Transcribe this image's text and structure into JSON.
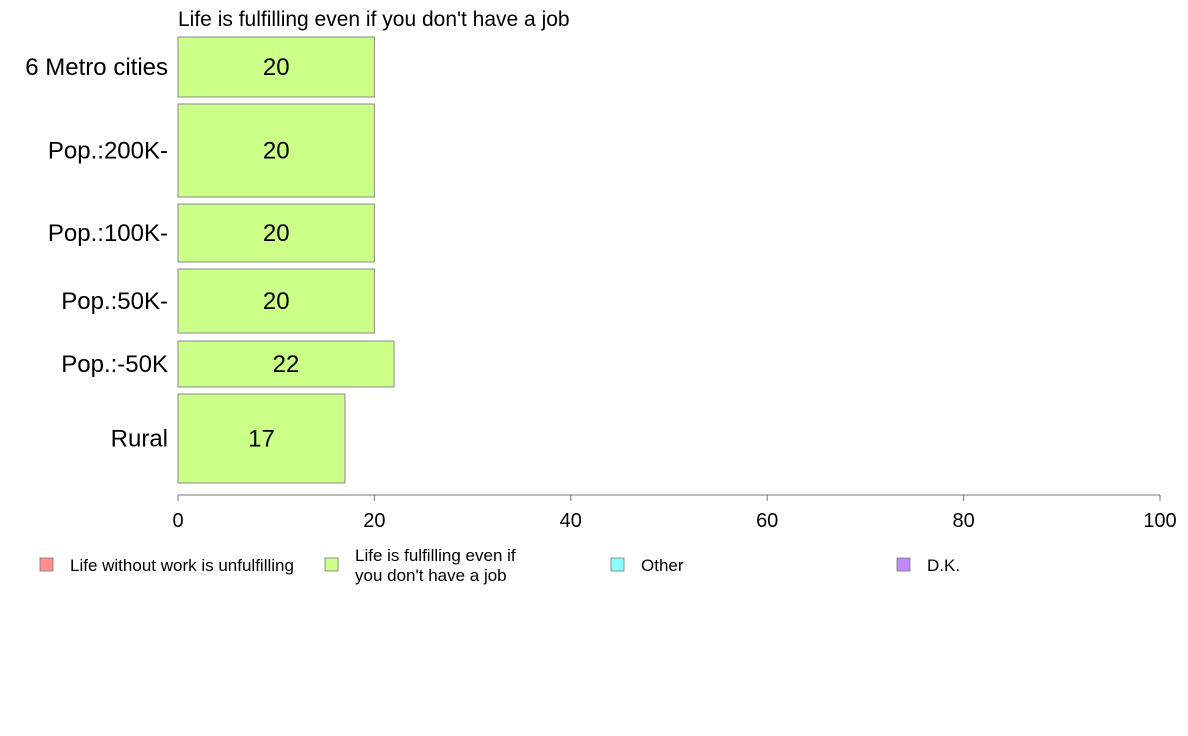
{
  "chart_data": {
    "type": "bar",
    "orientation": "horizontal",
    "title": "Life is fulfilling even if you don't have a job",
    "categories": [
      "6 Metro cities",
      "Pop.:200K-",
      "Pop.:100K-",
      "Pop.:50K-",
      "Pop.:-50K",
      "Rural"
    ],
    "series": [
      {
        "name": "Life is fulfilling even if you don't have a job",
        "color": "#ccff88",
        "values": [
          20,
          20,
          20,
          20,
          22,
          17
        ]
      }
    ],
    "xlim": [
      0,
      100
    ],
    "xticks": [
      "0",
      "20",
      "40",
      "60",
      "80",
      "100"
    ],
    "grid": false,
    "legend": {
      "position": "bottom",
      "entries": [
        {
          "lines": [
            "Life without work is unfulfilling"
          ],
          "color": "#ff8f8f"
        },
        {
          "lines": [
            "Life is fulfilling even if",
            "you don't have a job"
          ],
          "color": "#ccff88"
        },
        {
          "lines": [
            "Other"
          ],
          "color": "#88ffff"
        },
        {
          "lines": [
            "D.K."
          ],
          "color": "#bf88ff"
        }
      ]
    }
  }
}
